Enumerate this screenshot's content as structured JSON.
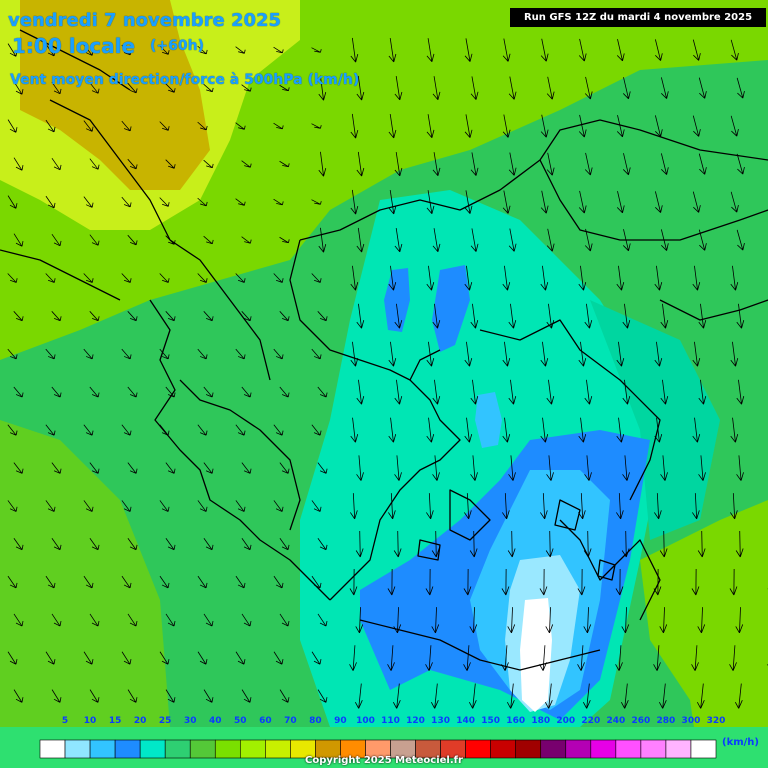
{
  "header": {
    "date": "vendredi 7 novembre 2025",
    "time": "1:00 locale",
    "lead": "(+60h)",
    "parameter": "Vent moyen direction/force à 500hPa (km/h)",
    "run": "Run GFS 12Z du mardi 4 novembre 2025"
  },
  "legend": {
    "unit": "(km/h)",
    "thresholds": [
      "5",
      "10",
      "15",
      "20",
      "25",
      "30",
      "40",
      "50",
      "60",
      "70",
      "80",
      "90",
      "100",
      "110",
      "120",
      "130",
      "140",
      "150",
      "160",
      "180",
      "200",
      "220",
      "240",
      "260",
      "280",
      "300",
      "320"
    ],
    "colors": [
      "#ffffff",
      "#90e6ff",
      "#32c4ff",
      "#1e8cff",
      "#00e8c8",
      "#2ecf72",
      "#54c838",
      "#7ae000",
      "#a2f000",
      "#c8f000",
      "#e8e800",
      "#d09800",
      "#ff8c00",
      "#ff9a6a",
      "#c8a090",
      "#c85a3c",
      "#e03c28",
      "#ff0000",
      "#c80000",
      "#a00000",
      "#78006e",
      "#b400b4",
      "#e600e6",
      "#ff50ff",
      "#ff80ff",
      "#ffb4ff",
      "#ffffff"
    ]
  },
  "map_colors": {
    "base": "#2fc75a",
    "light_green": "#7ad800",
    "yellow_green": "#c8ef1a",
    "olive": "#c0b000",
    "teal": "#00e6b4",
    "blue": "#1e8cff",
    "sky": "#32c4ff",
    "pale": "#9ae8ff"
  },
  "copyright": "Copyright 2025 Meteociel.fr"
}
